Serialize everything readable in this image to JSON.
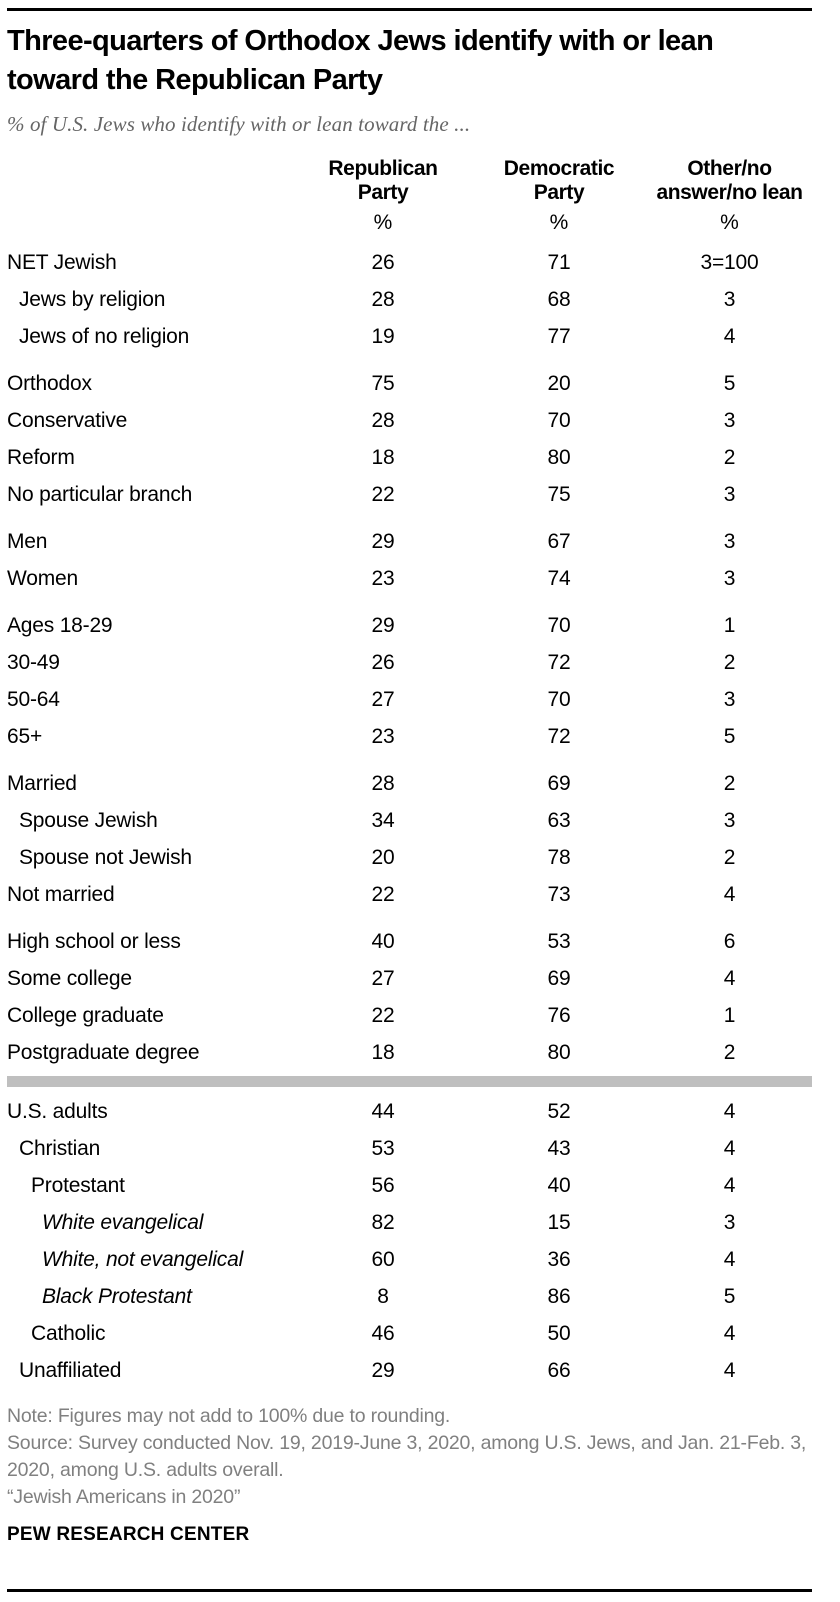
{
  "page": {
    "title": "Three-quarters of Orthodox Jews identify with or lean toward the Republican Party",
    "subtitle": "% of U.S. Jews who identify with or lean toward the ...",
    "colors": {
      "rule": "#000000",
      "divider": "#bfbfbf",
      "muted_text": "#808080",
      "subtitle_text": "#666666"
    }
  },
  "chart_data": {
    "type": "table",
    "title": "Three-quarters of Orthodox Jews identify with or lean toward the Republican Party",
    "subtitle": "% of U.S. Jews who identify with or lean toward the ...",
    "columns": [
      "Republican Party",
      "Democratic Party",
      "Other/no answer/no lean"
    ],
    "unit_row": [
      "%",
      "%",
      "%"
    ],
    "rows": [
      {
        "label": "NET Jewish",
        "values": [
          "26",
          "71",
          "3=100"
        ],
        "indent": 0
      },
      {
        "label": "Jews by religion",
        "values": [
          "28",
          "68",
          "3"
        ],
        "indent": 1
      },
      {
        "label": "Jews of no religion",
        "values": [
          "19",
          "77",
          "4"
        ],
        "indent": 1
      },
      {
        "label": "Orthodox",
        "values": [
          "75",
          "20",
          "5"
        ],
        "indent": 0,
        "group_start": true
      },
      {
        "label": "Conservative",
        "values": [
          "28",
          "70",
          "3"
        ],
        "indent": 0
      },
      {
        "label": "Reform",
        "values": [
          "18",
          "80",
          "2"
        ],
        "indent": 0
      },
      {
        "label": "No particular branch",
        "values": [
          "22",
          "75",
          "3"
        ],
        "indent": 0
      },
      {
        "label": "Men",
        "values": [
          "29",
          "67",
          "3"
        ],
        "indent": 0,
        "group_start": true
      },
      {
        "label": "Women",
        "values": [
          "23",
          "74",
          "3"
        ],
        "indent": 0
      },
      {
        "label": "Ages 18-29",
        "values": [
          "29",
          "70",
          "1"
        ],
        "indent": 0,
        "group_start": true
      },
      {
        "label": "30-49",
        "values": [
          "26",
          "72",
          "2"
        ],
        "indent": 0
      },
      {
        "label": "50-64",
        "values": [
          "27",
          "70",
          "3"
        ],
        "indent": 0
      },
      {
        "label": "65+",
        "values": [
          "23",
          "72",
          "5"
        ],
        "indent": 0
      },
      {
        "label": "Married",
        "values": [
          "28",
          "69",
          "2"
        ],
        "indent": 0,
        "group_start": true
      },
      {
        "label": "Spouse Jewish",
        "values": [
          "34",
          "63",
          "3"
        ],
        "indent": 1
      },
      {
        "label": "Spouse not Jewish",
        "values": [
          "20",
          "78",
          "2"
        ],
        "indent": 1
      },
      {
        "label": "Not married",
        "values": [
          "22",
          "73",
          "4"
        ],
        "indent": 0
      },
      {
        "label": "High school or less",
        "values": [
          "40",
          "53",
          "6"
        ],
        "indent": 0,
        "group_start": true
      },
      {
        "label": "Some college",
        "values": [
          "27",
          "69",
          "4"
        ],
        "indent": 0
      },
      {
        "label": "College graduate",
        "values": [
          "22",
          "76",
          "1"
        ],
        "indent": 0
      },
      {
        "label": "Postgraduate degree",
        "values": [
          "18",
          "80",
          "2"
        ],
        "indent": 0
      },
      {
        "label": "U.S. adults",
        "values": [
          "44",
          "52",
          "4"
        ],
        "indent": 0,
        "divider_before": true
      },
      {
        "label": "Christian",
        "values": [
          "53",
          "43",
          "4"
        ],
        "indent": 1
      },
      {
        "label": "Protestant",
        "values": [
          "56",
          "40",
          "4"
        ],
        "indent": 2
      },
      {
        "label": "White evangelical",
        "values": [
          "82",
          "15",
          "3"
        ],
        "indent": 3,
        "italic": true
      },
      {
        "label": "White, not evangelical",
        "values": [
          "60",
          "36",
          "4"
        ],
        "indent": 3,
        "italic": true
      },
      {
        "label": "Black Protestant",
        "values": [
          "8",
          "86",
          "5"
        ],
        "indent": 3,
        "italic": true
      },
      {
        "label": "Catholic",
        "values": [
          "46",
          "50",
          "4"
        ],
        "indent": 2
      },
      {
        "label": "Unaffiliated",
        "values": [
          "29",
          "66",
          "4"
        ],
        "indent": 1
      }
    ]
  },
  "footer": {
    "note": "Note: Figures may not add to 100% due to rounding.",
    "source": "Source: Survey conducted Nov. 19, 2019-June 3, 2020, among U.S. Jews, and Jan. 21-Feb. 3, 2020, among U.S. adults overall.",
    "attribution": "“Jewish Americans in 2020”",
    "brand": "PEW RESEARCH CENTER"
  }
}
